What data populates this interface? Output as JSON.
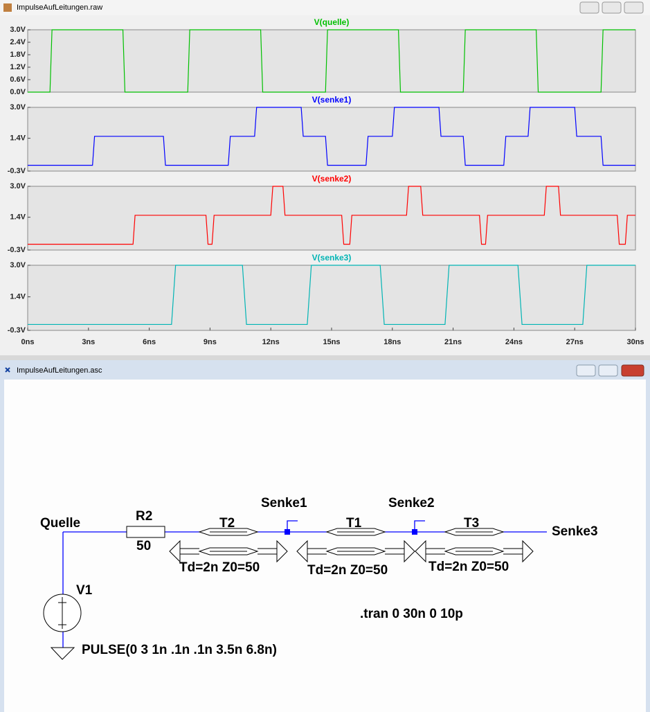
{
  "waveform_window": {
    "title": "ImpulseAufLeitungen.raw"
  },
  "chart_data": [
    {
      "type": "line",
      "title": "V(quelle)",
      "color": "#00c000",
      "x": [
        0,
        1.1,
        1.2,
        4.7,
        4.8,
        7.9,
        8.0,
        11.5,
        11.6,
        14.7,
        14.8,
        18.3,
        18.4,
        21.5,
        21.6,
        25.1,
        25.2,
        28.3,
        28.4,
        30
      ],
      "values": [
        0,
        0,
        3,
        3,
        0,
        0,
        3,
        3,
        0,
        0,
        3,
        3,
        0,
        0,
        3,
        3,
        0,
        0,
        3,
        3
      ],
      "xlim": [
        0,
        30
      ],
      "ylim": [
        0,
        3
      ],
      "yticks": [
        {
          "value": 3,
          "label": "3.0V"
        },
        {
          "value": 2.4,
          "label": "2.4V"
        },
        {
          "value": 1.8,
          "label": "1.8V"
        },
        {
          "value": 1.2,
          "label": "1.2V"
        },
        {
          "value": 0.6,
          "label": "0.6V"
        },
        {
          "value": 0,
          "label": "0.0V"
        }
      ]
    },
    {
      "type": "line",
      "title": "V(senke1)",
      "color": "#0000ff",
      "x": [
        0,
        3.2,
        3.3,
        6.7,
        6.8,
        9.9,
        10.0,
        11.2,
        11.3,
        13.5,
        13.6,
        14.7,
        14.8,
        16.7,
        16.8,
        18.0,
        18.1,
        20.3,
        20.4,
        21.5,
        21.6,
        23.5,
        23.6,
        24.7,
        24.8,
        27.0,
        27.1,
        28.3,
        28.4,
        30
      ],
      "values": [
        0,
        0,
        1.5,
        1.5,
        0,
        0,
        1.5,
        1.5,
        3,
        3,
        1.5,
        1.5,
        0,
        0,
        1.5,
        1.5,
        3,
        3,
        1.5,
        1.5,
        0,
        0,
        1.5,
        1.5,
        3,
        3,
        1.5,
        1.5,
        0,
        0
      ],
      "xlim": [
        0,
        30
      ],
      "ylim": [
        -0.3,
        3
      ],
      "yticks": [
        {
          "value": 3,
          "label": "3.0V"
        },
        {
          "value": 1.4,
          "label": "1.4V"
        },
        {
          "value": -0.3,
          "label": "-0.3V"
        }
      ]
    },
    {
      "type": "line",
      "title": "V(senke2)",
      "color": "#ff0000",
      "x": [
        0,
        5.2,
        5.3,
        8.8,
        8.9,
        9.1,
        9.2,
        12.0,
        12.1,
        12.6,
        12.7,
        15.5,
        15.6,
        15.9,
        16.0,
        18.7,
        18.8,
        19.4,
        19.5,
        22.3,
        22.4,
        22.6,
        22.7,
        25.5,
        25.6,
        26.2,
        26.3,
        29.1,
        29.2,
        29.5,
        29.6,
        30
      ],
      "values": [
        0,
        0,
        1.5,
        1.5,
        0,
        0,
        1.5,
        1.5,
        3,
        3,
        1.5,
        1.5,
        0,
        0,
        1.5,
        1.5,
        3,
        3,
        1.5,
        1.5,
        0,
        0,
        1.5,
        1.5,
        3,
        3,
        1.5,
        1.5,
        0,
        0,
        1.5,
        1.5
      ],
      "xlim": [
        0,
        30
      ],
      "ylim": [
        -0.3,
        3
      ],
      "yticks": [
        {
          "value": 3,
          "label": "3.0V"
        },
        {
          "value": 1.4,
          "label": "1.4V"
        },
        {
          "value": -0.3,
          "label": "-0.3V"
        }
      ]
    },
    {
      "type": "line",
      "title": "V(senke3)",
      "color": "#00b4b4",
      "x": [
        0,
        7.1,
        7.3,
        10.6,
        10.8,
        13.8,
        14.0,
        17.4,
        17.6,
        20.6,
        20.8,
        24.2,
        24.4,
        27.4,
        27.6,
        30
      ],
      "values": [
        0,
        0,
        3,
        3,
        0,
        0,
        3,
        3,
        0,
        0,
        3,
        3,
        0,
        0,
        3,
        3
      ],
      "xlim": [
        0,
        30
      ],
      "ylim": [
        -0.3,
        3
      ],
      "yticks": [
        {
          "value": 3,
          "label": "3.0V"
        },
        {
          "value": 1.4,
          "label": "1.4V"
        },
        {
          "value": -0.3,
          "label": "-0.3V"
        }
      ],
      "xticks": [
        {
          "value": 0,
          "label": "0ns"
        },
        {
          "value": 3,
          "label": "3ns"
        },
        {
          "value": 6,
          "label": "6ns"
        },
        {
          "value": 9,
          "label": "9ns"
        },
        {
          "value": 12,
          "label": "12ns"
        },
        {
          "value": 15,
          "label": "15ns"
        },
        {
          "value": 18,
          "label": "18ns"
        },
        {
          "value": 21,
          "label": "21ns"
        },
        {
          "value": 24,
          "label": "24ns"
        },
        {
          "value": 27,
          "label": "27ns"
        },
        {
          "value": 30,
          "label": "30ns"
        }
      ]
    }
  ],
  "schematic": {
    "title": "ImpulseAufLeitungen.asc",
    "nets": [
      "Quelle",
      "Senke1",
      "Senke2",
      "Senke3"
    ],
    "resistor": {
      "name": "R2",
      "value": "50"
    },
    "lines": [
      {
        "name": "T2",
        "value": "Td=2n Z0=50"
      },
      {
        "name": "T1",
        "value": "Td=2n Z0=50"
      },
      {
        "name": "T3",
        "value": "Td=2n Z0=50"
      }
    ],
    "source": {
      "name": "V1",
      "value": "PULSE(0 3 1n .1n .1n 3.5n 6.8n)"
    },
    "directive": ".tran 0 30n 0 10p"
  }
}
